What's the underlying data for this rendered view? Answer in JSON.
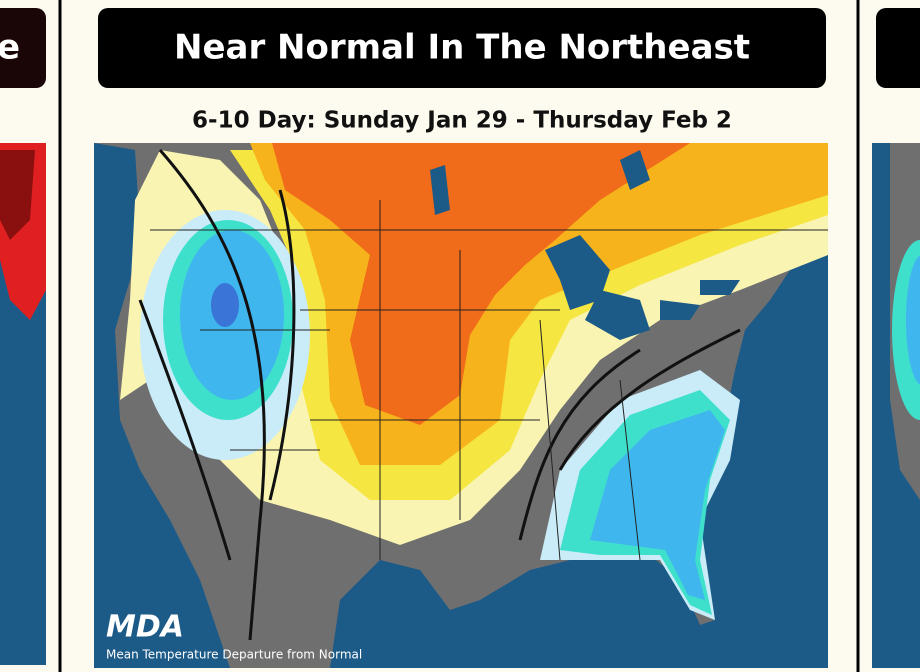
{
  "left_card": {
    "title": "e"
  },
  "card": {
    "title": "Near Normal In The Northeast",
    "subtitle": "6-10 Day: Sunday Jan 29 - Thursday Feb 2",
    "logo": "MDA",
    "caption": "Mean Temperature Departure from Normal"
  }
}
